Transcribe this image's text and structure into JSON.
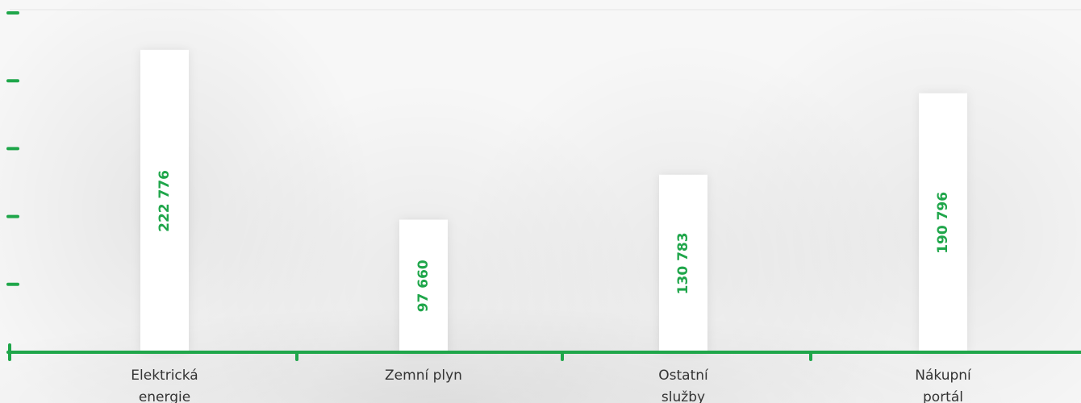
{
  "chart_data": {
    "type": "bar",
    "categories": [
      "Elektrická energie",
      "Zemní plyn",
      "Ostatní služby",
      "Nákupní portál"
    ],
    "values": [
      222776,
      97660,
      130783,
      190796
    ],
    "value_labels": [
      "222 776",
      "97 660",
      "130 783",
      "190 796"
    ],
    "color": "#ffffff",
    "label_color": "#1fa64a",
    "axis_color": "#1fa64a",
    "ylim": [
      0,
      250000
    ],
    "yticks": [
      0,
      50000,
      100000,
      150000,
      200000,
      250000
    ]
  }
}
